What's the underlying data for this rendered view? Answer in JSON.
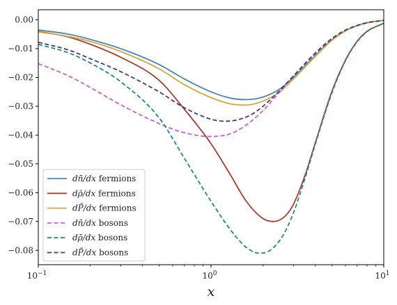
{
  "chart_data": {
    "type": "line",
    "title": "",
    "xlabel": "x",
    "ylabel": "",
    "xscale": "log",
    "xlim": [
      0.1,
      10
    ],
    "ylim": [
      -0.085,
      0.0035
    ],
    "grid": false,
    "legend": "lower-left",
    "x_ticks": [
      {
        "value": 0.1,
        "label": "10",
        "exp": "−1"
      },
      {
        "value": 1,
        "label": "10",
        "exp": "0"
      },
      {
        "value": 10,
        "label": "10",
        "exp": "1"
      }
    ],
    "y_ticks": [
      {
        "value": 0.0,
        "label": "0.00"
      },
      {
        "value": -0.01,
        "label": "−0.01"
      },
      {
        "value": -0.02,
        "label": "−0.02"
      },
      {
        "value": -0.03,
        "label": "−0.03"
      },
      {
        "value": -0.04,
        "label": "−0.04"
      },
      {
        "value": -0.05,
        "label": "−0.05"
      },
      {
        "value": -0.06,
        "label": "−0.06"
      },
      {
        "value": -0.07,
        "label": "−0.07"
      },
      {
        "value": -0.08,
        "label": "−0.08"
      }
    ],
    "series": [
      {
        "name": "dn̄/dx fermions",
        "sym": "n",
        "kind": "fermions",
        "color": "#4a86b8",
        "dash": "solid",
        "points": [
          [
            0.1,
            -0.0035
          ],
          [
            0.15,
            -0.005
          ],
          [
            0.2,
            -0.0068
          ],
          [
            0.3,
            -0.01
          ],
          [
            0.5,
            -0.0155
          ],
          [
            0.7,
            -0.0205
          ],
          [
            1.0,
            -0.025
          ],
          [
            1.3,
            -0.0272
          ],
          [
            1.6,
            -0.0277
          ],
          [
            2.0,
            -0.0268
          ],
          [
            2.5,
            -0.024
          ],
          [
            3.0,
            -0.02
          ],
          [
            4.0,
            -0.0125
          ],
          [
            5.0,
            -0.007
          ],
          [
            6.0,
            -0.0038
          ],
          [
            7.0,
            -0.002
          ],
          [
            8.0,
            -0.001
          ],
          [
            10.0,
            -0.0002
          ]
        ]
      },
      {
        "name": "dρ̄/dx fermions",
        "sym": "rho",
        "kind": "fermions",
        "color": "#b03a2e",
        "dash": "solid",
        "points": [
          [
            0.1,
            -0.004
          ],
          [
            0.15,
            -0.006
          ],
          [
            0.2,
            -0.0085
          ],
          [
            0.3,
            -0.013
          ],
          [
            0.5,
            -0.021
          ],
          [
            0.7,
            -0.031
          ],
          [
            1.0,
            -0.043
          ],
          [
            1.3,
            -0.054
          ],
          [
            1.6,
            -0.063
          ],
          [
            2.0,
            -0.069
          ],
          [
            2.3,
            -0.07
          ],
          [
            2.7,
            -0.068
          ],
          [
            3.0,
            -0.064
          ],
          [
            3.5,
            -0.054
          ],
          [
            4.0,
            -0.043
          ],
          [
            5.0,
            -0.025
          ],
          [
            6.0,
            -0.014
          ],
          [
            7.0,
            -0.0075
          ],
          [
            8.0,
            -0.004
          ],
          [
            10.0,
            -0.0012
          ]
        ]
      },
      {
        "name": "dP̄/dx fermions",
        "sym": "P",
        "kind": "fermions",
        "color": "#d4a73a",
        "dash": "solid",
        "points": [
          [
            0.1,
            -0.0042
          ],
          [
            0.15,
            -0.0058
          ],
          [
            0.2,
            -0.0075
          ],
          [
            0.3,
            -0.011
          ],
          [
            0.5,
            -0.017
          ],
          [
            0.7,
            -0.0225
          ],
          [
            1.0,
            -0.027
          ],
          [
            1.3,
            -0.0292
          ],
          [
            1.6,
            -0.0296
          ],
          [
            2.0,
            -0.0282
          ],
          [
            2.5,
            -0.025
          ],
          [
            3.0,
            -0.0205
          ],
          [
            4.0,
            -0.0128
          ],
          [
            5.0,
            -0.0072
          ],
          [
            6.0,
            -0.0039
          ],
          [
            7.0,
            -0.0021
          ],
          [
            8.0,
            -0.0011
          ],
          [
            10.0,
            -0.0002
          ]
        ]
      },
      {
        "name": "dn̄/dx bosons",
        "sym": "n",
        "kind": "bosons",
        "color": "#c75fd2",
        "dash": "dashed",
        "points": [
          [
            0.1,
            -0.0152
          ],
          [
            0.15,
            -0.0195
          ],
          [
            0.2,
            -0.0235
          ],
          [
            0.3,
            -0.0295
          ],
          [
            0.5,
            -0.036
          ],
          [
            0.7,
            -0.0392
          ],
          [
            1.0,
            -0.0405
          ],
          [
            1.3,
            -0.0395
          ],
          [
            1.6,
            -0.0365
          ],
          [
            2.0,
            -0.0315
          ],
          [
            2.5,
            -0.025
          ],
          [
            3.0,
            -0.0195
          ],
          [
            4.0,
            -0.0115
          ],
          [
            5.0,
            -0.0065
          ],
          [
            6.0,
            -0.0036
          ],
          [
            7.0,
            -0.002
          ],
          [
            8.0,
            -0.001
          ],
          [
            10.0,
            -0.0002
          ]
        ]
      },
      {
        "name": "dρ̄/dx bosons",
        "sym": "rho",
        "kind": "bosons",
        "color": "#1f8a80",
        "dash": "dashed",
        "points": [
          [
            0.1,
            -0.0085
          ],
          [
            0.15,
            -0.0115
          ],
          [
            0.2,
            -0.015
          ],
          [
            0.3,
            -0.0215
          ],
          [
            0.5,
            -0.034
          ],
          [
            0.7,
            -0.048
          ],
          [
            1.0,
            -0.063
          ],
          [
            1.3,
            -0.073
          ],
          [
            1.6,
            -0.079
          ],
          [
            1.9,
            -0.081
          ],
          [
            2.2,
            -0.08
          ],
          [
            2.6,
            -0.075
          ],
          [
            3.0,
            -0.067
          ],
          [
            3.5,
            -0.055
          ],
          [
            4.0,
            -0.0435
          ],
          [
            5.0,
            -0.0255
          ],
          [
            6.0,
            -0.0142
          ],
          [
            7.0,
            -0.0077
          ],
          [
            8.0,
            -0.0041
          ],
          [
            10.0,
            -0.0012
          ]
        ]
      },
      {
        "name": "dP̄/dx bosons",
        "sym": "P",
        "kind": "bosons",
        "color": "#3d3a80",
        "dash": "dashed",
        "points": [
          [
            0.1,
            -0.0078
          ],
          [
            0.15,
            -0.0105
          ],
          [
            0.2,
            -0.0135
          ],
          [
            0.3,
            -0.018
          ],
          [
            0.5,
            -0.025
          ],
          [
            0.7,
            -0.0305
          ],
          [
            1.0,
            -0.0345
          ],
          [
            1.2,
            -0.0352
          ],
          [
            1.4,
            -0.0348
          ],
          [
            1.7,
            -0.033
          ],
          [
            2.0,
            -0.03
          ],
          [
            2.5,
            -0.0245
          ],
          [
            3.0,
            -0.0195
          ],
          [
            4.0,
            -0.0118
          ],
          [
            5.0,
            -0.0066
          ],
          [
            6.0,
            -0.0036
          ],
          [
            7.0,
            -0.002
          ],
          [
            8.0,
            -0.001
          ],
          [
            10.0,
            -0.0002
          ]
        ]
      }
    ]
  }
}
